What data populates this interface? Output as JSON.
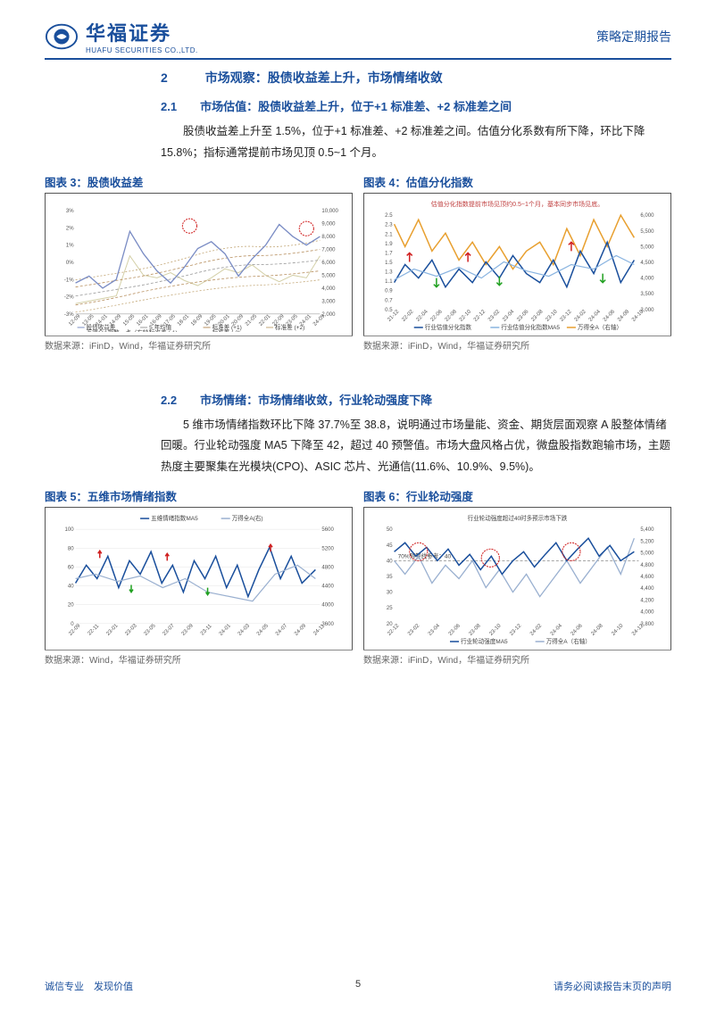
{
  "header": {
    "company_cn": "华福证券",
    "company_en": "HUAFU SECURITIES CO.,LTD.",
    "report_type": "策略定期报告"
  },
  "section2": {
    "number": "2",
    "title": "市场观察：股债收益差上升，市场情绪收敛"
  },
  "section2_1": {
    "number": "2.1",
    "title": "市场估值：股债收益差上升，位于+1 标准差、+2 标准差之间",
    "body": "股债收益差上升至 1.5%，位于+1 标准差、+2 标准差之间。估值分化系数有所下降，环比下降 15.8%；指标通常提前市场见顶 0.5~1 个月。"
  },
  "section2_2": {
    "number": "2.2",
    "title": "市场情绪：市场情绪收敛，行业轮动强度下降",
    "body": "5 维市场情绪指数环比下降 37.7%至 38.8，说明通过市场量能、资金、期货层面观察 A 股整体情绪回暖。行业轮动强度 MA5 下降至 42，超过 40 预警值。市场大盘风格占优，微盘股指数跑输市场，主题热度主要聚集在光模块(CPO)、ASIC 芯片、光通信(11.6%、10.9%、9.5%)。"
  },
  "chart3": {
    "title": "图表 3：股债收益差",
    "source": "数据来源：iFinD，Wind，华福证券研究所",
    "colors": {
      "main": "#7a8cc4",
      "index": "#d4d0a8",
      "std1": "#b89060",
      "std2": "#c4a878",
      "mean": "#9a9a9a"
    },
    "y_left": {
      "min": -3,
      "max": 3,
      "ticks": [
        "-3%",
        "-2%",
        "-1%",
        "0%",
        "1%",
        "2%",
        "3%"
      ]
    },
    "y_right": {
      "min": 2000,
      "max": 10000,
      "ticks": [
        "2,000",
        "3,000",
        "4,000",
        "5,000",
        "6,000",
        "7,000",
        "8,000",
        "9,000",
        "10,000"
      ]
    },
    "x_labels": [
      "12-09",
      "13-05",
      "14-01",
      "14-09",
      "15-05",
      "16-01",
      "16-09",
      "17-05",
      "18-01",
      "18-09",
      "19-05",
      "20-01",
      "20-09",
      "21-05",
      "22-01",
      "22-09",
      "23-05",
      "24-01",
      "24-09"
    ],
    "legend": [
      "股债收益差",
      "5 年均值",
      "标准差 (+1)",
      "标准差 (+2)",
      "万得全A指数，点（右轴）",
      "标准差 (-1)",
      "标准差 (-2)"
    ],
    "main_line": [
      -1.2,
      -0.8,
      -1.5,
      -1.0,
      1.8,
      0.5,
      -0.5,
      -1.2,
      -0.3,
      0.8,
      1.2,
      0.5,
      -0.8,
      0.2,
      1.0,
      2.2,
      1.5,
      1.0,
      1.5
    ],
    "index_line": [
      2800,
      3000,
      3200,
      3400,
      6500,
      5000,
      4800,
      5200,
      4600,
      4200,
      4800,
      5500,
      5200,
      5800,
      5000,
      4500,
      5000,
      4800,
      6500
    ]
  },
  "chart4": {
    "title": "图表 4：估值分化指数",
    "source": "数据来源：iFinD，Wind，华福证券研究所",
    "note": "估值分化指数提前市场见顶约0.5~1个月，基本同步市场见底。",
    "colors": {
      "main": "#1a4f9c",
      "ma5": "#8ab4e0",
      "index": "#e8a030",
      "arrow_up": "#d02020",
      "arrow_down": "#20a020"
    },
    "y_left": {
      "min": 0.5,
      "max": 2.5,
      "ticks": [
        "0.5",
        "0.7",
        "0.9",
        "1.1",
        "1.3",
        "1.5",
        "1.7",
        "1.9",
        "2.1",
        "2.3",
        "2.5"
      ]
    },
    "y_right": {
      "min": 3000,
      "max": 6000,
      "ticks": [
        "3,000",
        "3,500",
        "4,000",
        "4,500",
        "5,000",
        "5,500",
        "6,000"
      ]
    },
    "x_labels": [
      "21-12",
      "22-02",
      "22-04",
      "22-06",
      "22-08",
      "22-10",
      "22-12",
      "23-02",
      "23-04",
      "23-06",
      "23-08",
      "23-10",
      "23-12",
      "24-02",
      "24-04",
      "24-06",
      "24-08",
      "24-10"
    ],
    "legend": [
      "行业估值分化指数",
      "行业估值分化指数MA5",
      "万得全A（右轴）"
    ]
  },
  "chart5": {
    "title": "图表 5：五维市场情绪指数",
    "source": "数据来源：Wind，华福证券研究所",
    "colors": {
      "main": "#1a4f9c",
      "index": "#9ab0d0",
      "arrow_up": "#d02020",
      "arrow_down": "#20a020"
    },
    "y_left": {
      "min": 0,
      "max": 100,
      "ticks": [
        "0",
        "20",
        "40",
        "60",
        "80",
        "100"
      ]
    },
    "y_right": {
      "min": 3600,
      "max": 5600,
      "ticks": [
        "3600",
        "4000",
        "4400",
        "4800",
        "5200",
        "5600"
      ]
    },
    "x_labels": [
      "22-09",
      "22-11",
      "23-01",
      "23-03",
      "23-05",
      "23-07",
      "23-09",
      "23-11",
      "24-01",
      "24-03",
      "24-05",
      "24-07",
      "24-09",
      "24-11"
    ],
    "legend": [
      "五维情绪指数MA5",
      "万得全A(右)"
    ]
  },
  "chart6": {
    "title": "图表 6：行业轮动强度",
    "source": "数据来源：iFinD，Wind，华福证券研究所",
    "note": "行业轮动强度超过40时多预示市场下跌",
    "threshold_label": "70%预警线参考：40",
    "colors": {
      "main": "#1a4f9c",
      "index": "#9ab0d0",
      "threshold": "#888888",
      "circle": "#d02020"
    },
    "y_left": {
      "min": 20,
      "max": 50,
      "ticks": [
        "20",
        "25",
        "30",
        "35",
        "40",
        "45",
        "50"
      ]
    },
    "y_right": {
      "min": 3800,
      "max": 5400,
      "ticks": [
        "3,800",
        "4,000",
        "4,200",
        "4,400",
        "4,600",
        "4,800",
        "5,000",
        "5,200",
        "5,400"
      ]
    },
    "x_labels": [
      "22-12",
      "23-02",
      "23-04",
      "23-06",
      "23-08",
      "23-10",
      "23-12",
      "24-02",
      "24-04",
      "24-06",
      "24-08",
      "24-10",
      "24-12"
    ],
    "legend": [
      "行业轮动强度MA5",
      "万得全A（右轴）"
    ]
  },
  "footer": {
    "left": "诚信专业　发现价值",
    "page": "5",
    "right": "请务必阅读报告末页的声明"
  }
}
